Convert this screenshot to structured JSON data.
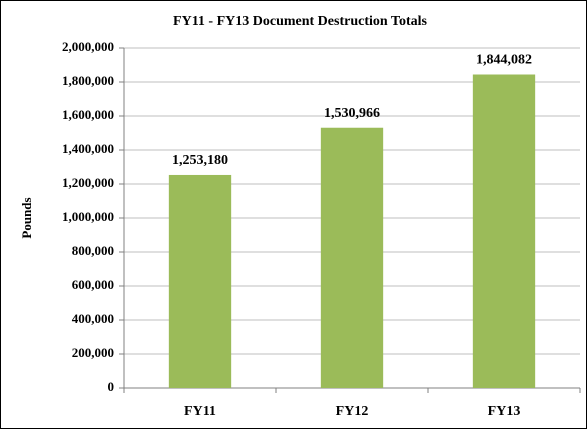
{
  "chart_data": {
    "type": "bar",
    "title": "FY11 - FY13 Document Destruction Totals",
    "ylabel": "Pounds",
    "categories": [
      "FY11",
      "FY12",
      "FY13"
    ],
    "values": [
      1253180,
      1530966,
      1844082
    ],
    "value_labels": [
      "1,253,180",
      "1,530,966",
      "1,844,082"
    ],
    "color": "#9bbb59",
    "ylim": [
      0,
      2000000
    ],
    "yticks": [
      0,
      {
        "value": 200000,
        "label": "200,000"
      },
      {
        "value": 400000,
        "label": "400,000"
      },
      {
        "value": 600000,
        "label": "600,000"
      },
      {
        "value": 800000,
        "label": "800,000"
      },
      {
        "value": 1000000,
        "label": "1,000,000"
      },
      {
        "value": 1200000,
        "label": "1,200,000"
      },
      {
        "value": 1400000,
        "label": "1,400,000"
      },
      {
        "value": 1600000,
        "label": "1,600,000"
      },
      {
        "value": 1800000,
        "label": "1,800,000"
      },
      {
        "value": 2000000,
        "label": "2,000,000"
      }
    ],
    "grid": true
  }
}
